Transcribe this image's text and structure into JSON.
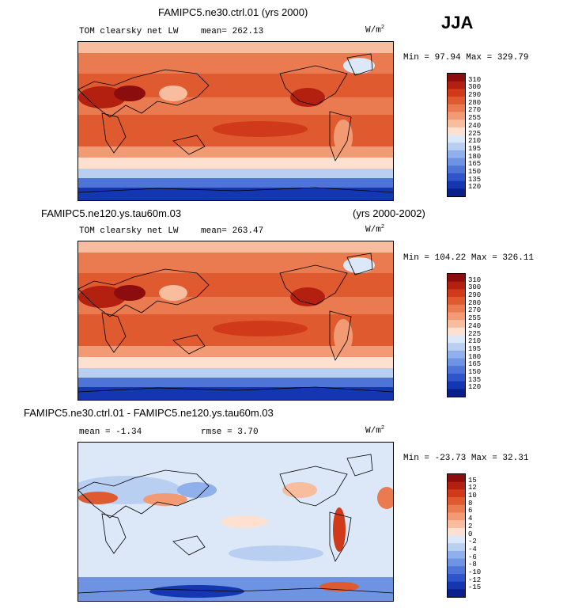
{
  "season": "JJA",
  "panels": [
    {
      "title": "FAMIPC5.ne30.ctrl.01 (yrs 2000)",
      "subtitle": "",
      "field": "TOM clearsky net LW",
      "stat": "mean= 262.13",
      "units": "W/m",
      "units_exp": "2",
      "range": "Min =  97.94 Max = 329.79",
      "cbar_labels": [
        "310",
        "300",
        "290",
        "280",
        "270",
        "255",
        "240",
        "225",
        "210",
        "195",
        "180",
        "165",
        "150",
        "135",
        "120"
      ]
    },
    {
      "title": "FAMIPC5.ne120.ys.tau60m.03",
      "subtitle": "(yrs 2000-2002)",
      "field": "TOM clearsky net LW",
      "stat": "mean= 263.47",
      "units": "W/m",
      "units_exp": "2",
      "range": "Min = 104.22 Max = 326.11",
      "cbar_labels": [
        "310",
        "300",
        "290",
        "280",
        "270",
        "255",
        "240",
        "225",
        "210",
        "195",
        "180",
        "165",
        "150",
        "135",
        "120"
      ]
    },
    {
      "title": "FAMIPC5.ne30.ctrl.01 - FAMIPC5.ne120.ys.tau60m.03",
      "subtitle": "",
      "field": "mean =  -1.34",
      "stat": "rmse =   3.70",
      "units": "W/m",
      "units_exp": "2",
      "range": "Min = -23.73 Max =  32.31",
      "cbar_labels": [
        "15",
        "12",
        "10",
        "8",
        "6",
        "4",
        "2",
        "0",
        "-2",
        "-4",
        "-6",
        "-8",
        "-10",
        "-12",
        "-15"
      ]
    }
  ],
  "colors": {
    "full": [
      "#8c0d0d",
      "#b3200f",
      "#d03a1a",
      "#e05a30",
      "#ea7a4f",
      "#f29a74",
      "#f8bc9f",
      "#fde0cf",
      "#dce8f8",
      "#b8cff2",
      "#8fb0ea",
      "#6e93e2",
      "#4e74d8",
      "#2e55c9",
      "#1436b0",
      "#0a1f8a"
    ],
    "diff": [
      "#8c0d0d",
      "#b3200f",
      "#d03a1a",
      "#e05a30",
      "#ea7a4f",
      "#f29a74",
      "#f8bc9f",
      "#fde0cf",
      "#dce8f8",
      "#b8cff2",
      "#8fb0ea",
      "#6e93e2",
      "#4e74d8",
      "#2e55c9",
      "#1436b0",
      "#0a1f8a"
    ]
  },
  "chart_data": [
    {
      "type": "heatmap",
      "title": "FAMIPC5.ne30.ctrl.01 (yrs 2000)",
      "variable": "TOM clearsky net LW",
      "season": "JJA",
      "mean": 262.13,
      "min": 97.94,
      "max": 329.79,
      "units": "W/m2",
      "contour_levels": [
        120,
        135,
        150,
        165,
        180,
        195,
        210,
        225,
        240,
        255,
        270,
        280,
        290,
        300,
        310
      ],
      "projection": "global map, 0-360 longitude"
    },
    {
      "type": "heatmap",
      "title": "FAMIPC5.ne120.ys.tau60m.03 (yrs 2000-2002)",
      "variable": "TOM clearsky net LW",
      "season": "JJA",
      "mean": 263.47,
      "min": 104.22,
      "max": 326.11,
      "units": "W/m2",
      "contour_levels": [
        120,
        135,
        150,
        165,
        180,
        195,
        210,
        225,
        240,
        255,
        270,
        280,
        290,
        300,
        310
      ],
      "projection": "global map, 0-360 longitude"
    },
    {
      "type": "heatmap",
      "title": "FAMIPC5.ne30.ctrl.01 - FAMIPC5.ne120.ys.tau60m.03",
      "variable": "difference",
      "season": "JJA",
      "mean": -1.34,
      "rmse": 3.7,
      "min": -23.73,
      "max": 32.31,
      "units": "W/m2",
      "contour_levels": [
        -15,
        -12,
        -10,
        -8,
        -6,
        -4,
        -2,
        0,
        2,
        4,
        6,
        8,
        10,
        12,
        15
      ],
      "projection": "global map, 0-360 longitude"
    }
  ]
}
